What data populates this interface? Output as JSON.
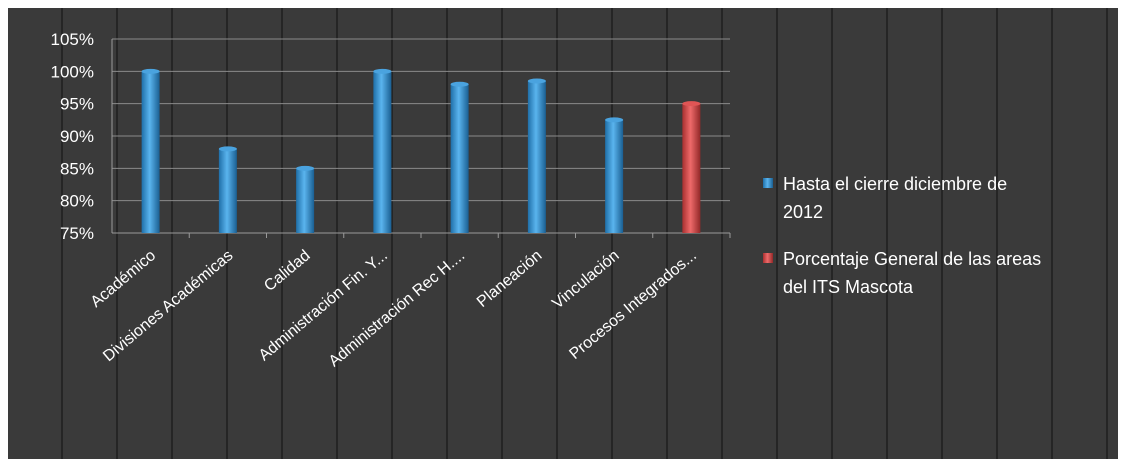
{
  "chart_data": {
    "type": "bar",
    "title": "",
    "xlabel": "",
    "ylabel": "",
    "ylim": [
      75,
      105
    ],
    "yticks": [
      "75%",
      "80%",
      "85%",
      "90%",
      "95%",
      "100%",
      "105%"
    ],
    "grid": true,
    "legend_position": "right",
    "categories": [
      "Académico",
      "Divisiones Académicas",
      "Calidad",
      "Administración Fin. Y...",
      "Administración Rec H....",
      "Planeación",
      "Vinculación",
      "Procesos Integrados..."
    ],
    "series": [
      {
        "name": "Hasta el cierre diciembre de 2012",
        "legend_lines": [
          "Hasta el cierre diciembre de",
          "2012"
        ],
        "color": "#4aa3df",
        "values": [
          100,
          88,
          85,
          100,
          98,
          98.5,
          92.5,
          null
        ]
      },
      {
        "name": "Porcentaje General de las areas del ITS Mascota",
        "legend_lines": [
          "Porcentaje General de las areas",
          "del ITS Mascota"
        ],
        "color": "#e05555",
        "values": [
          null,
          null,
          null,
          null,
          null,
          null,
          null,
          95
        ]
      }
    ]
  }
}
